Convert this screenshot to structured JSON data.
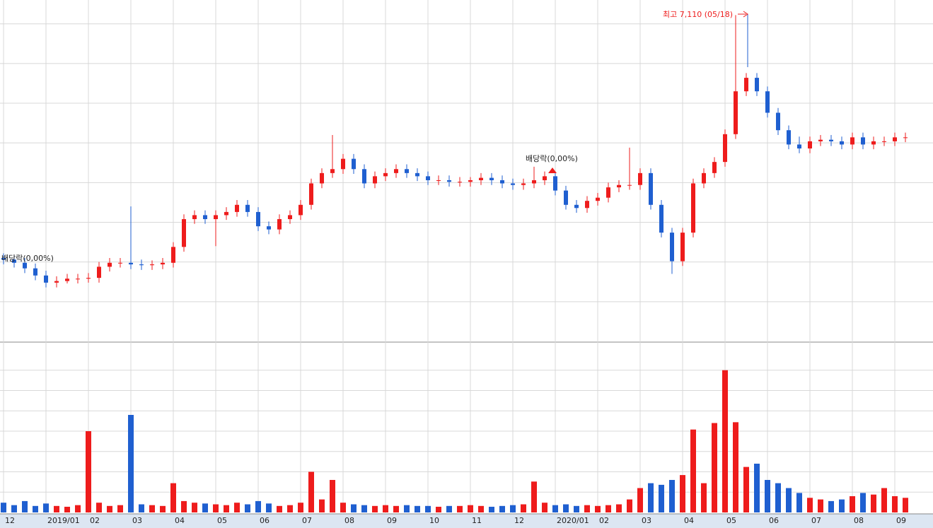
{
  "chart_data": {
    "type": "candlestick",
    "categories": [
      "12",
      null,
      null,
      null,
      "2019/01",
      null,
      null,
      null,
      "02",
      null,
      null,
      null,
      "03",
      null,
      null,
      null,
      "04",
      null,
      null,
      null,
      "05",
      null,
      null,
      null,
      "06",
      null,
      null,
      null,
      "07",
      null,
      null,
      null,
      "08",
      null,
      null,
      null,
      "09",
      null,
      null,
      null,
      "10",
      null,
      null,
      null,
      "11",
      null,
      null,
      null,
      "12",
      null,
      null,
      null,
      "2020/01",
      null,
      null,
      null,
      "02",
      null,
      null,
      null,
      "03",
      null,
      null,
      null,
      "04",
      null,
      null,
      null,
      "05",
      null,
      null,
      null,
      "06",
      null,
      null,
      null,
      "07",
      null,
      null,
      null,
      "08",
      null,
      null,
      null,
      "09",
      null
    ],
    "open": [
      4050,
      4030,
      3990,
      3920,
      3830,
      3740,
      3760,
      3790,
      3790,
      3800,
      3940,
      3990,
      3990,
      3970,
      3960,
      3970,
      3990,
      4190,
      4540,
      4590,
      4540,
      4590,
      4630,
      4720,
      4630,
      4450,
      4410,
      4540,
      4590,
      4720,
      4990,
      5120,
      5170,
      5300,
      5170,
      4990,
      5080,
      5120,
      5170,
      5120,
      5080,
      5030,
      5030,
      5010,
      5010,
      5030,
      5060,
      5030,
      4990,
      4970,
      4990,
      5030,
      5080,
      4900,
      4720,
      4680,
      4770,
      4810,
      4940,
      4970,
      4970,
      5120,
      4720,
      4370,
      4010,
      4370,
      4990,
      5120,
      5260,
      5610,
      6150,
      6320,
      6150,
      5880,
      5660,
      5480,
      5430,
      5520,
      5540,
      5520,
      5480,
      5570,
      5480,
      5520,
      5520,
      5570
    ],
    "high": [
      4110,
      4090,
      4050,
      3980,
      3890,
      3820,
      3850,
      3850,
      3860,
      4000,
      4050,
      4050,
      4700,
      4030,
      4020,
      4050,
      4250,
      4600,
      4650,
      4650,
      4650,
      4690,
      4780,
      4780,
      4690,
      4510,
      4600,
      4650,
      4780,
      5050,
      5180,
      5600,
      5360,
      5360,
      5230,
      5140,
      5180,
      5230,
      5230,
      5180,
      5140,
      5090,
      5090,
      5070,
      5070,
      5120,
      5120,
      5090,
      5050,
      5050,
      5200,
      5140,
      5140,
      4960,
      4780,
      4830,
      4870,
      5000,
      5030,
      5440,
      5180,
      5180,
      4780,
      4430,
      4430,
      5050,
      5180,
      5320,
      5670,
      7110,
      6380,
      6380,
      6210,
      5940,
      5720,
      5580,
      5580,
      5600,
      5600,
      5580,
      5630,
      5630,
      5580,
      5580,
      5630,
      5630
    ],
    "low": [
      3970,
      3930,
      3860,
      3770,
      3680,
      3680,
      3730,
      3730,
      3740,
      3740,
      3880,
      3930,
      3910,
      3900,
      3900,
      3910,
      3930,
      4130,
      4480,
      4480,
      4200,
      4530,
      4570,
      4570,
      4390,
      4350,
      4350,
      4480,
      4530,
      4660,
      4930,
      5060,
      5110,
      5110,
      4930,
      4930,
      5020,
      5060,
      5060,
      5020,
      4970,
      4970,
      4950,
      4950,
      4950,
      4970,
      4970,
      4930,
      4910,
      4910,
      4930,
      4970,
      4840,
      4660,
      4620,
      4620,
      4710,
      4750,
      4880,
      4910,
      4910,
      4660,
      4310,
      3850,
      3950,
      4310,
      4930,
      5060,
      5200,
      5550,
      6090,
      6090,
      5820,
      5600,
      5420,
      5370,
      5370,
      5460,
      5460,
      5420,
      5420,
      5420,
      5420,
      5460,
      5460,
      5510
    ],
    "close": [
      4030,
      3990,
      3920,
      3830,
      3740,
      3760,
      3790,
      3790,
      3800,
      3940,
      3990,
      3990,
      3970,
      3960,
      3970,
      3990,
      4190,
      4540,
      4590,
      4540,
      4590,
      4630,
      4720,
      4630,
      4450,
      4410,
      4540,
      4590,
      4720,
      4990,
      5120,
      5170,
      5300,
      5170,
      4990,
      5080,
      5120,
      5170,
      5120,
      5080,
      5030,
      5030,
      5010,
      5010,
      5030,
      5060,
      5030,
      4990,
      4970,
      4990,
      5030,
      5080,
      4900,
      4720,
      4680,
      4770,
      4810,
      4940,
      4970,
      4970,
      5120,
      4720,
      4370,
      4010,
      4370,
      4990,
      5120,
      5260,
      5610,
      6150,
      6320,
      6150,
      5880,
      5660,
      5480,
      5430,
      5520,
      5540,
      5520,
      5480,
      5570,
      5480,
      5520,
      5520,
      5570,
      5570
    ],
    "volume": [
      60,
      45,
      70,
      40,
      55,
      40,
      35,
      45,
      500,
      60,
      40,
      45,
      600,
      50,
      45,
      40,
      180,
      70,
      60,
      55,
      50,
      45,
      60,
      50,
      70,
      55,
      40,
      45,
      60,
      250,
      80,
      200,
      60,
      50,
      45,
      40,
      45,
      40,
      45,
      40,
      40,
      35,
      40,
      40,
      45,
      40,
      35,
      40,
      45,
      50,
      190,
      60,
      45,
      50,
      40,
      45,
      40,
      45,
      50,
      80,
      150,
      180,
      170,
      200,
      230,
      510,
      180,
      550,
      875,
      555,
      280,
      300,
      200,
      180,
      150,
      120,
      90,
      80,
      70,
      80,
      100,
      120,
      110,
      150,
      100,
      90
    ],
    "up_color": "#ee1c1c",
    "down_color": "#1f5fd0",
    "ylim": [
      3000,
      7300
    ],
    "yticks": [
      3500,
      4000,
      4500,
      5000,
      5500,
      6000,
      6500,
      7000
    ],
    "volume_ylim": [
      0,
      1000
    ],
    "volume_ticks": [
      125,
      250,
      375,
      500,
      625,
      750,
      875
    ],
    "annotations": [
      "최고 7,110 (05/18)",
      "배당락(0,00%)",
      "배당락(0,00%)"
    ]
  }
}
